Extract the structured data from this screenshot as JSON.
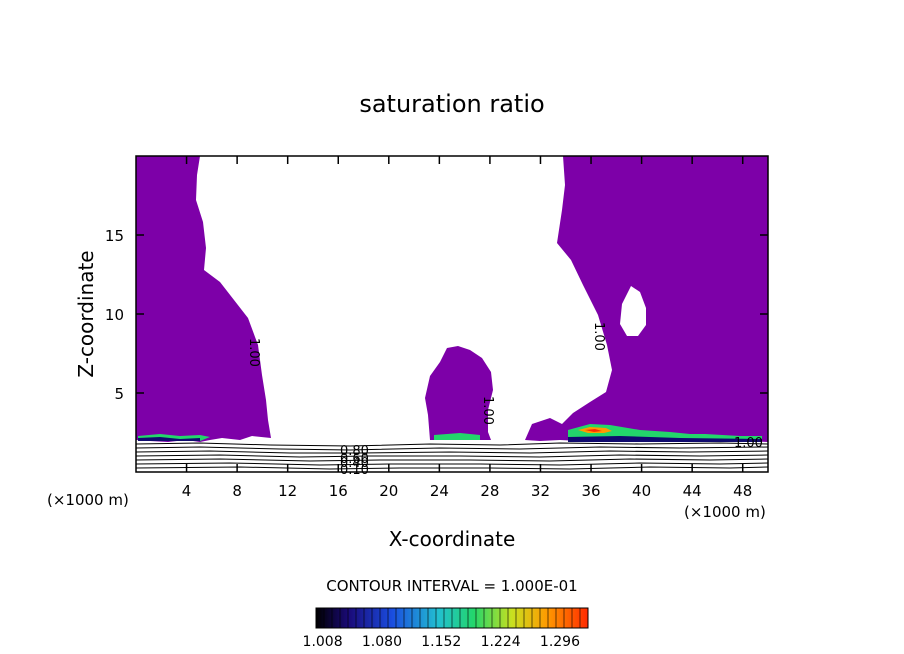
{
  "chart_data": {
    "type": "contour",
    "title": "saturation ratio",
    "xlabel": "X-coordinate",
    "ylabel": "Z-coordinate",
    "x_unit_left": "(×1000 m)",
    "x_unit_right": "(×1000 m)",
    "xlim": [
      0,
      50
    ],
    "ylim": [
      0,
      20
    ],
    "x_ticks": [
      "4",
      "8",
      "12",
      "16",
      "20",
      "24",
      "28",
      "32",
      "36",
      "40",
      "44",
      "48"
    ],
    "y_ticks": [
      "5",
      "10",
      "15"
    ],
    "contour_interval_text": "CONTOUR INTERVAL = 1.000E-01",
    "colorbar_labels": [
      "1.008",
      "1.080",
      "1.152",
      "1.224",
      "1.296"
    ],
    "colorbar_range": [
      1.0,
      1.33
    ],
    "contour_labels": [
      "1.00",
      "1.00",
      "1.00",
      "1.00",
      "0.80",
      "0.60",
      "0.40",
      "0.10"
    ],
    "colors": {
      "fill": "#7d00a8",
      "low": "#100a6e",
      "mid": "#23d66b",
      "high": "#ff2a00"
    },
    "regions": [
      {
        "name": "left-plume",
        "z_range": [
          2,
          20
        ]
      },
      {
        "name": "center-cell",
        "z_range": [
          2,
          8
        ]
      },
      {
        "name": "right-plume",
        "z_range": [
          2,
          20
        ]
      }
    ]
  }
}
